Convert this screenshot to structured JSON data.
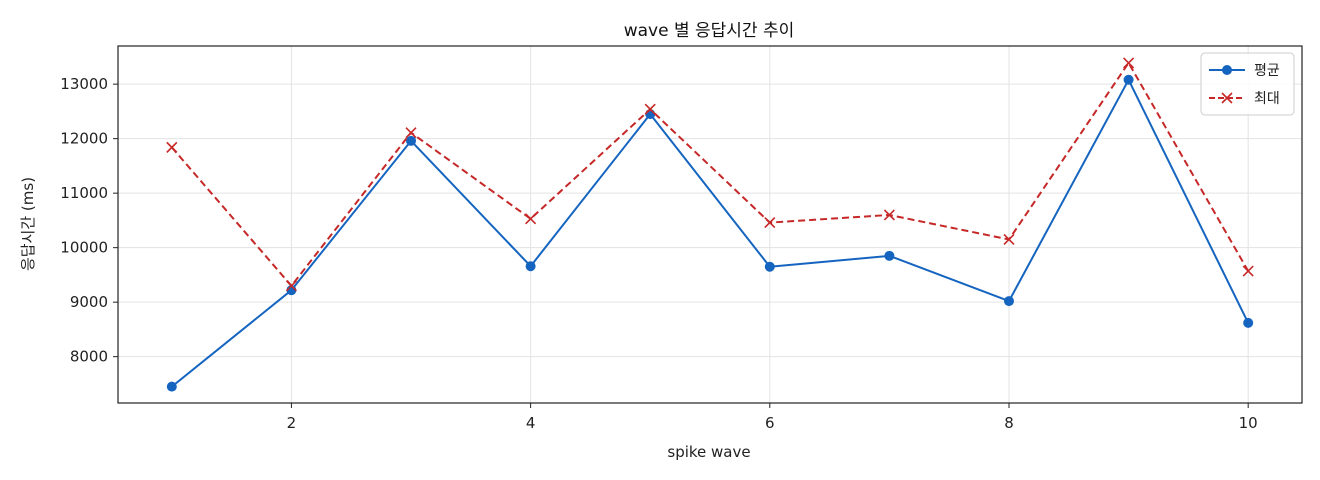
{
  "chart_data": {
    "type": "line",
    "title": "wave 별 응답시간 추이",
    "xlabel": "spike wave",
    "ylabel": "응답시간 (ms)",
    "x": [
      1,
      2,
      3,
      4,
      5,
      6,
      7,
      8,
      9,
      10
    ],
    "xlim": [
      0.55,
      10.45
    ],
    "ylim": [
      7150,
      13700
    ],
    "xticks": [
      2,
      4,
      6,
      8,
      10
    ],
    "yticks": [
      8000,
      9000,
      10000,
      11000,
      12000,
      13000
    ],
    "grid": true,
    "legend_position": "top-right",
    "series": [
      {
        "name": "평균",
        "color": "#1565c0",
        "line_style": "solid",
        "marker": "circle",
        "values": [
          7450,
          9220,
          11960,
          9660,
          12450,
          9650,
          9850,
          9020,
          13080,
          8620
        ]
      },
      {
        "name": "최대",
        "color": "#c62828",
        "line_style": "dashed",
        "marker": "x",
        "values": [
          11840,
          9300,
          12110,
          10530,
          12540,
          10460,
          10600,
          10150,
          13390,
          9570
        ]
      }
    ]
  }
}
